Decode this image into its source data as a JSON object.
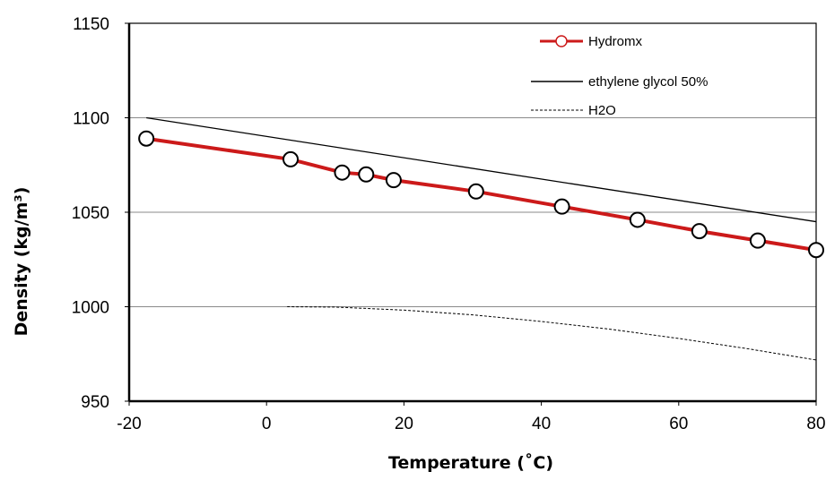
{
  "chart_data": {
    "type": "line",
    "title": "",
    "xlabel": "Temperature (˚C)",
    "ylabel": "Density (kg/m³)",
    "xlim": [
      -20,
      80
    ],
    "ylim": [
      950,
      1150
    ],
    "x_ticks": [
      "-20",
      "0",
      "20",
      "40",
      "60",
      "80"
    ],
    "y_ticks": [
      "950",
      "1000",
      "1050",
      "1100",
      "1150"
    ],
    "grid": "horizontal",
    "legend_position": "top-right",
    "series": [
      {
        "name": "Hydromx",
        "color": "#cc1a1a",
        "marker": "open-circle",
        "x": [
          -17.5,
          3.5,
          11,
          14.5,
          18.5,
          30.5,
          43,
          54,
          63,
          71.5,
          80
        ],
        "y": [
          1089,
          1078,
          1071,
          1070,
          1067,
          1061,
          1053,
          1046,
          1040,
          1035,
          1030
        ]
      },
      {
        "name": "ethylene glycol 50%",
        "color": "#000000",
        "style": "solid",
        "x": [
          -17.5,
          80
        ],
        "y": [
          1100,
          1045
        ]
      },
      {
        "name": "H2O",
        "color": "#000000",
        "style": "dashed",
        "x": [
          3,
          10,
          20,
          30,
          40,
          50,
          60,
          70,
          80
        ],
        "y": [
          1000,
          999.8,
          998.2,
          995.7,
          992.2,
          988.1,
          983.2,
          977.8,
          971.8
        ]
      }
    ]
  }
}
